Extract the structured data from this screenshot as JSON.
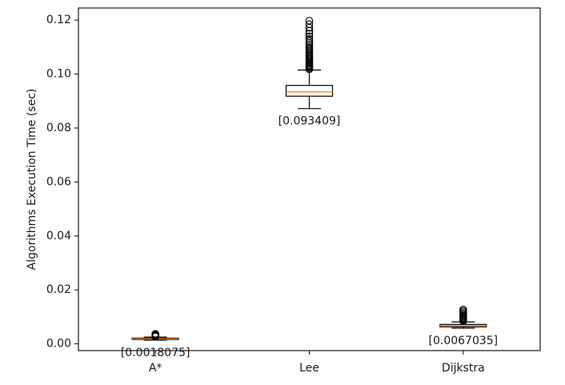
{
  "chart_data": {
    "type": "box",
    "title": "",
    "xlabel": "",
    "ylabel": "Algorithms Execution Time (sec)",
    "ylim": [
      -0.0025,
      0.1245
    ],
    "yticks": [
      "0.00",
      "0.02",
      "0.04",
      "0.06",
      "0.08",
      "0.10",
      "0.12"
    ],
    "ytick_values": [
      0.0,
      0.02,
      0.04,
      0.06,
      0.08,
      0.1,
      0.12
    ],
    "grid": false,
    "legend": "none",
    "colors": {
      "box": "#000000",
      "median": "#ff7f0e",
      "flier": "#000000"
    },
    "categories": [
      "A*",
      "Lee",
      "Dijkstra"
    ],
    "boxes": [
      {
        "name": "A*",
        "whisker_low": 0.0014,
        "q1": 0.0016,
        "median": 0.0018075,
        "q3": 0.0021,
        "whisker_high": 0.0025,
        "fliers": [
          0.0027,
          0.0029,
          0.0031,
          0.0033,
          0.0035,
          0.0037
        ],
        "median_label": "[0.0018075]"
      },
      {
        "name": "Lee",
        "whisker_low": 0.0872,
        "q1": 0.0918,
        "median": 0.093409,
        "q3": 0.0958,
        "whisker_high": 0.1015,
        "fliers": [
          0.1018,
          0.1022,
          0.1026,
          0.103,
          0.1034,
          0.1038,
          0.1042,
          0.1046,
          0.105,
          0.1055,
          0.106,
          0.1065,
          0.107,
          0.1075,
          0.108,
          0.1085,
          0.109,
          0.1095,
          0.11,
          0.1108,
          0.1115,
          0.1123,
          0.113,
          0.114,
          0.115,
          0.116,
          0.1172,
          0.1185,
          0.1198
        ],
        "median_label": "[0.093409]"
      },
      {
        "name": "Dijkstra",
        "whisker_low": 0.0058,
        "q1": 0.0063,
        "median": 0.0067035,
        "q3": 0.0072,
        "whisker_high": 0.0081,
        "fliers": [
          0.0084,
          0.0088,
          0.0092,
          0.0096,
          0.01,
          0.0104,
          0.0108,
          0.0112,
          0.0117,
          0.0122,
          0.0127
        ],
        "median_label": "[0.0067035]"
      }
    ]
  }
}
